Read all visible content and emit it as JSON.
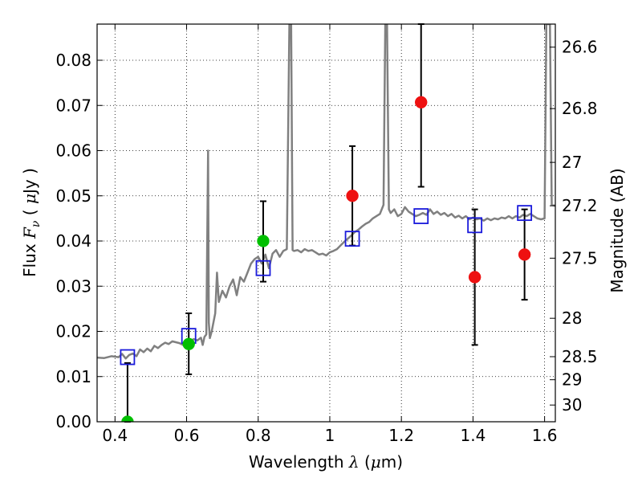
{
  "chart_data": {
    "type": "scatter",
    "xlabel": {
      "pre": "Wavelength  ",
      "sym": "λ",
      "post": " (",
      "unit_sym": "μ",
      "unit_post": "m)"
    },
    "ylabel": {
      "pre": "Flux  ",
      "sym": "F",
      "sub": "ν",
      "post": "  ( ",
      "unit_sym": "μ",
      "unit_post": "Jy )"
    },
    "y2label": "Magnitude (AB)",
    "xlim": [
      0.35,
      1.63
    ],
    "ylim": [
      0.0,
      0.088
    ],
    "grid": true,
    "x_ticks": [
      {
        "v": 0.4,
        "label": "0.4"
      },
      {
        "v": 0.6,
        "label": "0.6"
      },
      {
        "v": 0.8,
        "label": "0.8"
      },
      {
        "v": 1.0,
        "label": "1"
      },
      {
        "v": 1.2,
        "label": "1.2"
      },
      {
        "v": 1.4,
        "label": "1.4"
      },
      {
        "v": 1.6,
        "label": "1.6"
      }
    ],
    "y_ticks": [
      {
        "v": 0.0,
        "label": "0.00"
      },
      {
        "v": 0.01,
        "label": "0.01"
      },
      {
        "v": 0.02,
        "label": "0.02"
      },
      {
        "v": 0.03,
        "label": "0.03"
      },
      {
        "v": 0.04,
        "label": "0.04"
      },
      {
        "v": 0.05,
        "label": "0.05"
      },
      {
        "v": 0.06,
        "label": "0.06"
      },
      {
        "v": 0.07,
        "label": "0.07"
      },
      {
        "v": 0.08,
        "label": "0.08"
      }
    ],
    "mag_ticks": [
      {
        "flux": 0.0829,
        "label": "26.6"
      },
      {
        "flux": 0.0693,
        "label": "26.8"
      },
      {
        "flux": 0.0574,
        "label": "27"
      },
      {
        "flux": 0.0478,
        "label": "27.2"
      },
      {
        "flux": 0.0362,
        "label": "27.5"
      },
      {
        "flux": 0.0229,
        "label": "28"
      },
      {
        "flux": 0.0144,
        "label": "28.5"
      },
      {
        "flux": 0.0093,
        "label": "29"
      },
      {
        "flux": 0.0037,
        "label": "30"
      }
    ],
    "colors": {
      "spectrum": "#808080",
      "model": "#1a1adb",
      "green": "#00bf00",
      "red": "#ee1111",
      "errorbar": "#000000"
    },
    "series": [
      {
        "marker": "open-square",
        "color": "#1a1adb",
        "points": [
          {
            "x": 0.435,
            "y": 0.0143
          },
          {
            "x": 0.606,
            "y": 0.019
          },
          {
            "x": 0.814,
            "y": 0.034
          },
          {
            "x": 1.063,
            "y": 0.0405
          },
          {
            "x": 1.255,
            "y": 0.0455
          },
          {
            "x": 1.405,
            "y": 0.0435
          },
          {
            "x": 1.544,
            "y": 0.0462
          }
        ]
      },
      {
        "marker": "filled-circle",
        "color": "#00bf00",
        "points": [
          {
            "x": 0.435,
            "y": 0.0,
            "yerr_lo": 0.0,
            "yerr_hi": 0.013
          },
          {
            "x": 0.606,
            "y": 0.0172,
            "yerr_lo": 0.0067,
            "yerr_hi": 0.0068
          },
          {
            "x": 0.814,
            "y": 0.04,
            "yerr_lo": 0.009,
            "yerr_hi": 0.0088
          }
        ]
      },
      {
        "marker": "filled-circle",
        "color": "#ee1111",
        "points": [
          {
            "x": 1.063,
            "y": 0.05,
            "yerr_lo": 0.011,
            "yerr_hi": 0.011
          },
          {
            "x": 1.255,
            "y": 0.0707,
            "yerr_lo": 0.0187,
            "yerr_hi": 0.02
          },
          {
            "x": 1.405,
            "y": 0.032,
            "yerr_lo": 0.015,
            "yerr_hi": 0.015
          },
          {
            "x": 1.544,
            "y": 0.037,
            "yerr_lo": 0.01,
            "yerr_hi": 0.01
          }
        ]
      }
    ],
    "spectrum": [
      [
        0.35,
        0.0142
      ],
      [
        0.37,
        0.0141
      ],
      [
        0.39,
        0.0145
      ],
      [
        0.41,
        0.0143
      ],
      [
        0.42,
        0.015
      ],
      [
        0.43,
        0.014
      ],
      [
        0.44,
        0.0148
      ],
      [
        0.45,
        0.0151
      ],
      [
        0.46,
        0.0145
      ],
      [
        0.47,
        0.016
      ],
      [
        0.48,
        0.0154
      ],
      [
        0.49,
        0.0162
      ],
      [
        0.5,
        0.0156
      ],
      [
        0.51,
        0.0168
      ],
      [
        0.52,
        0.0163
      ],
      [
        0.53,
        0.017
      ],
      [
        0.54,
        0.0175
      ],
      [
        0.55,
        0.0172
      ],
      [
        0.56,
        0.0178
      ],
      [
        0.57,
        0.0176
      ],
      [
        0.58,
        0.0174
      ],
      [
        0.59,
        0.017
      ],
      [
        0.6,
        0.0176
      ],
      [
        0.61,
        0.0178
      ],
      [
        0.62,
        0.0183
      ],
      [
        0.63,
        0.018
      ],
      [
        0.64,
        0.0186
      ],
      [
        0.645,
        0.017
      ],
      [
        0.65,
        0.0188
      ],
      [
        0.655,
        0.0193
      ],
      [
        0.66,
        0.06
      ],
      [
        0.662,
        0.022
      ],
      [
        0.665,
        0.0185
      ],
      [
        0.67,
        0.02
      ],
      [
        0.68,
        0.024
      ],
      [
        0.685,
        0.033
      ],
      [
        0.69,
        0.0265
      ],
      [
        0.7,
        0.029
      ],
      [
        0.71,
        0.0275
      ],
      [
        0.72,
        0.03
      ],
      [
        0.73,
        0.0315
      ],
      [
        0.74,
        0.028
      ],
      [
        0.75,
        0.032
      ],
      [
        0.76,
        0.031
      ],
      [
        0.77,
        0.033
      ],
      [
        0.78,
        0.035
      ],
      [
        0.79,
        0.036
      ],
      [
        0.8,
        0.0365
      ],
      [
        0.81,
        0.035
      ],
      [
        0.82,
        0.037
      ],
      [
        0.83,
        0.034
      ],
      [
        0.84,
        0.0372
      ],
      [
        0.85,
        0.038
      ],
      [
        0.86,
        0.0365
      ],
      [
        0.87,
        0.0378
      ],
      [
        0.88,
        0.0382
      ],
      [
        0.887,
        0.088
      ],
      [
        0.892,
        0.088
      ],
      [
        0.896,
        0.038
      ],
      [
        0.9,
        0.0378
      ],
      [
        0.91,
        0.038
      ],
      [
        0.92,
        0.0375
      ],
      [
        0.93,
        0.0382
      ],
      [
        0.94,
        0.0378
      ],
      [
        0.95,
        0.038
      ],
      [
        0.96,
        0.0375
      ],
      [
        0.97,
        0.037
      ],
      [
        0.98,
        0.0372
      ],
      [
        0.99,
        0.0368
      ],
      [
        1.0,
        0.0375
      ],
      [
        1.01,
        0.0378
      ],
      [
        1.02,
        0.0382
      ],
      [
        1.03,
        0.039
      ],
      [
        1.04,
        0.0398
      ],
      [
        1.05,
        0.0405
      ],
      [
        1.06,
        0.0412
      ],
      [
        1.07,
        0.042
      ],
      [
        1.08,
        0.0425
      ],
      [
        1.09,
        0.0432
      ],
      [
        1.1,
        0.0438
      ],
      [
        1.11,
        0.0442
      ],
      [
        1.12,
        0.045
      ],
      [
        1.13,
        0.0455
      ],
      [
        1.14,
        0.046
      ],
      [
        1.15,
        0.048
      ],
      [
        1.155,
        0.088
      ],
      [
        1.16,
        0.088
      ],
      [
        1.165,
        0.047
      ],
      [
        1.17,
        0.0462
      ],
      [
        1.18,
        0.047
      ],
      [
        1.19,
        0.0455
      ],
      [
        1.2,
        0.046
      ],
      [
        1.21,
        0.0475
      ],
      [
        1.22,
        0.0465
      ],
      [
        1.23,
        0.046
      ],
      [
        1.24,
        0.0455
      ],
      [
        1.25,
        0.0458
      ],
      [
        1.26,
        0.0462
      ],
      [
        1.27,
        0.0458
      ],
      [
        1.28,
        0.047
      ],
      [
        1.29,
        0.046
      ],
      [
        1.3,
        0.0465
      ],
      [
        1.31,
        0.0458
      ],
      [
        1.32,
        0.0462
      ],
      [
        1.33,
        0.0455
      ],
      [
        1.34,
        0.046
      ],
      [
        1.35,
        0.0452
      ],
      [
        1.36,
        0.0456
      ],
      [
        1.37,
        0.045
      ],
      [
        1.38,
        0.0455
      ],
      [
        1.39,
        0.0448
      ],
      [
        1.4,
        0.0452
      ],
      [
        1.41,
        0.0448
      ],
      [
        1.42,
        0.045
      ],
      [
        1.43,
        0.0445
      ],
      [
        1.44,
        0.045
      ],
      [
        1.45,
        0.0446
      ],
      [
        1.46,
        0.045
      ],
      [
        1.47,
        0.0448
      ],
      [
        1.48,
        0.0452
      ],
      [
        1.49,
        0.045
      ],
      [
        1.5,
        0.0455
      ],
      [
        1.51,
        0.045
      ],
      [
        1.52,
        0.0455
      ],
      [
        1.53,
        0.0452
      ],
      [
        1.54,
        0.0458
      ],
      [
        1.55,
        0.0455
      ],
      [
        1.56,
        0.046
      ],
      [
        1.57,
        0.0455
      ],
      [
        1.58,
        0.045
      ],
      [
        1.59,
        0.0448
      ],
      [
        1.6,
        0.045
      ],
      [
        1.605,
        0.088
      ],
      [
        1.615,
        0.088
      ],
      [
        1.62,
        0.048
      ],
      [
        1.63,
        0.0478
      ]
    ]
  }
}
